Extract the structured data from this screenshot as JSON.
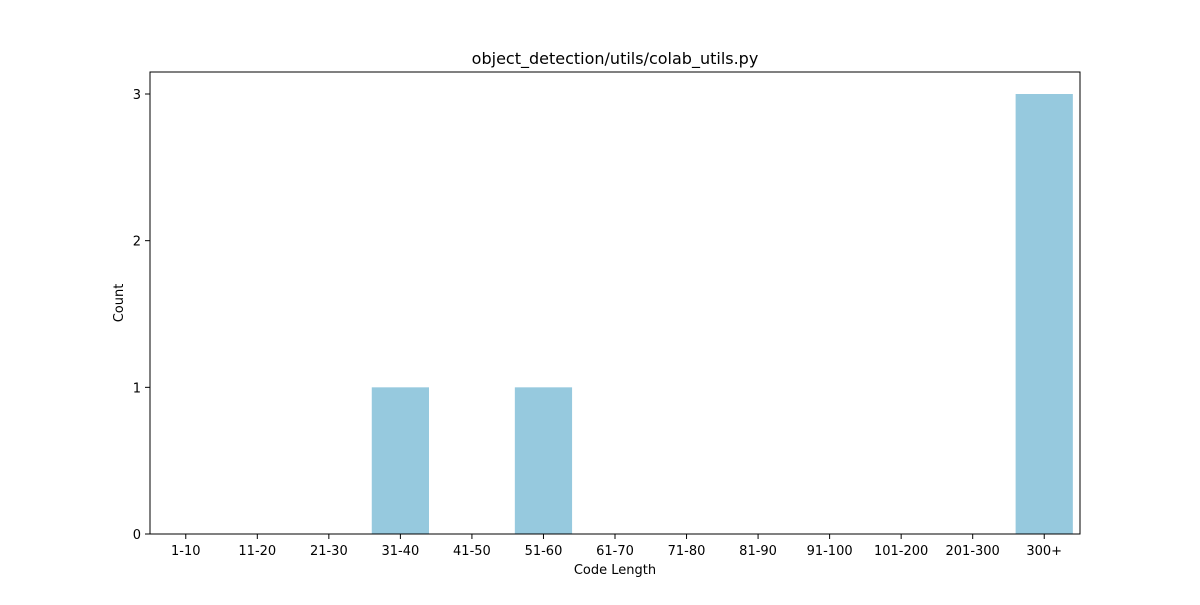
{
  "chart_data": {
    "type": "bar",
    "title": "object_detection/utils/colab_utils.py",
    "xlabel": "Code Length",
    "ylabel": "Count",
    "categories": [
      "1-10",
      "11-20",
      "21-30",
      "31-40",
      "41-50",
      "51-60",
      "61-70",
      "71-80",
      "81-90",
      "91-100",
      "101-200",
      "201-300",
      "300+"
    ],
    "values": [
      0,
      0,
      0,
      1,
      0,
      1,
      0,
      0,
      0,
      0,
      0,
      0,
      3
    ],
    "ylim": [
      0,
      3.15
    ],
    "yticks": [
      0,
      1,
      2,
      3
    ],
    "grid": false,
    "legend": "none",
    "bar_color": "#96c9de"
  }
}
